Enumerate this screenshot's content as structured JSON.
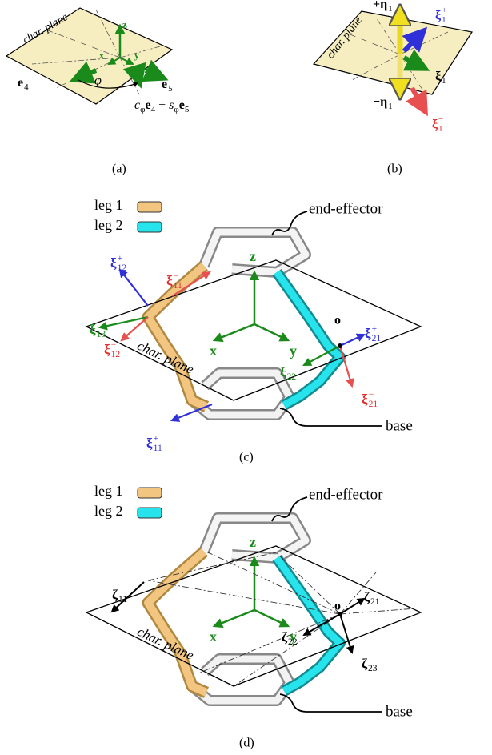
{
  "panel_a": {
    "plane": "char. plane",
    "axes": {
      "z": "z",
      "x": "x",
      "y": "y"
    },
    "e4": {
      "t": "e",
      "sub": "4"
    },
    "e5": {
      "t": "e",
      "sub": "5"
    },
    "phi": "φ",
    "combo": [
      {
        "t": "c",
        "sub": "φ"
      },
      {
        "t": "e",
        "sub": "4"
      },
      {
        "t": " + "
      },
      {
        "t": "s",
        "sub": "φ"
      },
      {
        "t": "e",
        "sub": "5"
      }
    ],
    "caption": "(a)"
  },
  "panel_b": {
    "plane": "char. plane",
    "eta_plus": {
      "t": "+η",
      "sub": "1"
    },
    "xi_plus": {
      "t": "ξ",
      "sub": "1",
      "sup": "+",
      "color": "#3030d8"
    },
    "xi": {
      "t": "ξ",
      "sub": "1"
    },
    "eta_minus": {
      "t": "−η",
      "sub": "1"
    },
    "xi_minus": {
      "t": "ξ",
      "sub": "1",
      "sup": "−",
      "color": "#e03030"
    },
    "caption": "(b)"
  },
  "panel_c": {
    "legend": [
      {
        "label": "leg 1",
        "color": "#f2c681"
      },
      {
        "label": "leg 2",
        "color": "#27e3eb"
      }
    ],
    "end_effector": "end-effector",
    "base": "base",
    "plane": "char. plane",
    "axes": {
      "z": "z",
      "x": "x",
      "y": "y"
    },
    "origin": "o",
    "labels": [
      {
        "t": "ξ",
        "sub": "12",
        "sup": "+",
        "color": "#3030d8"
      },
      {
        "t": "ξ",
        "sub": "11",
        "sup": "−",
        "color": "#e03030"
      },
      {
        "t": "ξ",
        "sub": "13",
        "color": "#1a8a1a"
      },
      {
        "t": "ξ",
        "sub": "12",
        "sup": "−",
        "color": "#e03030"
      },
      {
        "t": "ξ",
        "sub": "21",
        "sup": "+",
        "color": "#3030d8"
      },
      {
        "t": "ξ",
        "sub": "22",
        "color": "#1a8a1a"
      },
      {
        "t": "ξ",
        "sub": "21",
        "sup": "−",
        "color": "#e03030"
      },
      {
        "t": "ξ",
        "sub": "11",
        "sup": "+",
        "color": "#3030d8"
      }
    ],
    "caption": "(c)"
  },
  "panel_d": {
    "legend": [
      {
        "label": "leg 1",
        "color": "#f2c681"
      },
      {
        "label": "leg 2",
        "color": "#27e3eb"
      }
    ],
    "end_effector": "end-effector",
    "base": "base",
    "plane": "char. plane",
    "axes": {
      "z": "z",
      "x": "x",
      "y": "y"
    },
    "origin": "o",
    "labels": [
      {
        "t": "ζ",
        "sub": "11",
        "color": "#000000"
      },
      {
        "t": "ζ",
        "sub": "21",
        "color": "#000000"
      },
      {
        "t": "ζ",
        "sub": "22",
        "color": "#000000"
      },
      {
        "t": "ζ",
        "sub": "23",
        "color": "#000000"
      }
    ],
    "caption": "(d)"
  }
}
